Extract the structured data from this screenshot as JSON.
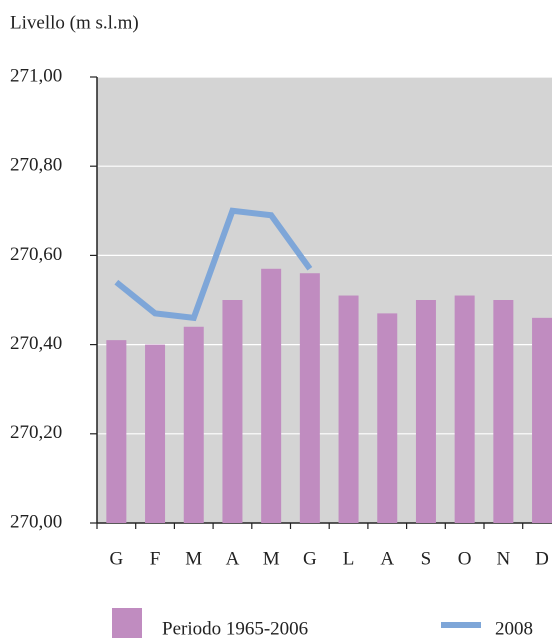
{
  "chart_data": {
    "type": "bar",
    "ylabel": "Livello (m s.l.m)",
    "categories": [
      "G",
      "F",
      "M",
      "A",
      "M",
      "G",
      "L",
      "A",
      "S",
      "O",
      "N",
      "D"
    ],
    "series": [
      {
        "name": "Periodo 1965-2006",
        "type": "bar",
        "color": "#c08cc0",
        "values": [
          270.41,
          270.4,
          270.44,
          270.5,
          270.57,
          270.56,
          270.51,
          270.47,
          270.5,
          270.51,
          270.5,
          270.46
        ]
      },
      {
        "name": "2008",
        "type": "line",
        "color": "#7ea6d8",
        "values": [
          270.54,
          270.47,
          270.46,
          270.7,
          270.69,
          270.57,
          null,
          null,
          null,
          null,
          null,
          null
        ]
      }
    ],
    "ylim": [
      270.0,
      271.0
    ],
    "yticks": [
      {
        "value": 270.0,
        "label": "270,00"
      },
      {
        "value": 270.2,
        "label": "270,20"
      },
      {
        "value": 270.4,
        "label": "270,40"
      },
      {
        "value": 270.6,
        "label": "270,60"
      },
      {
        "value": 270.8,
        "label": "270,80"
      },
      {
        "value": 271.0,
        "label": "271,00"
      }
    ],
    "grid": true
  }
}
